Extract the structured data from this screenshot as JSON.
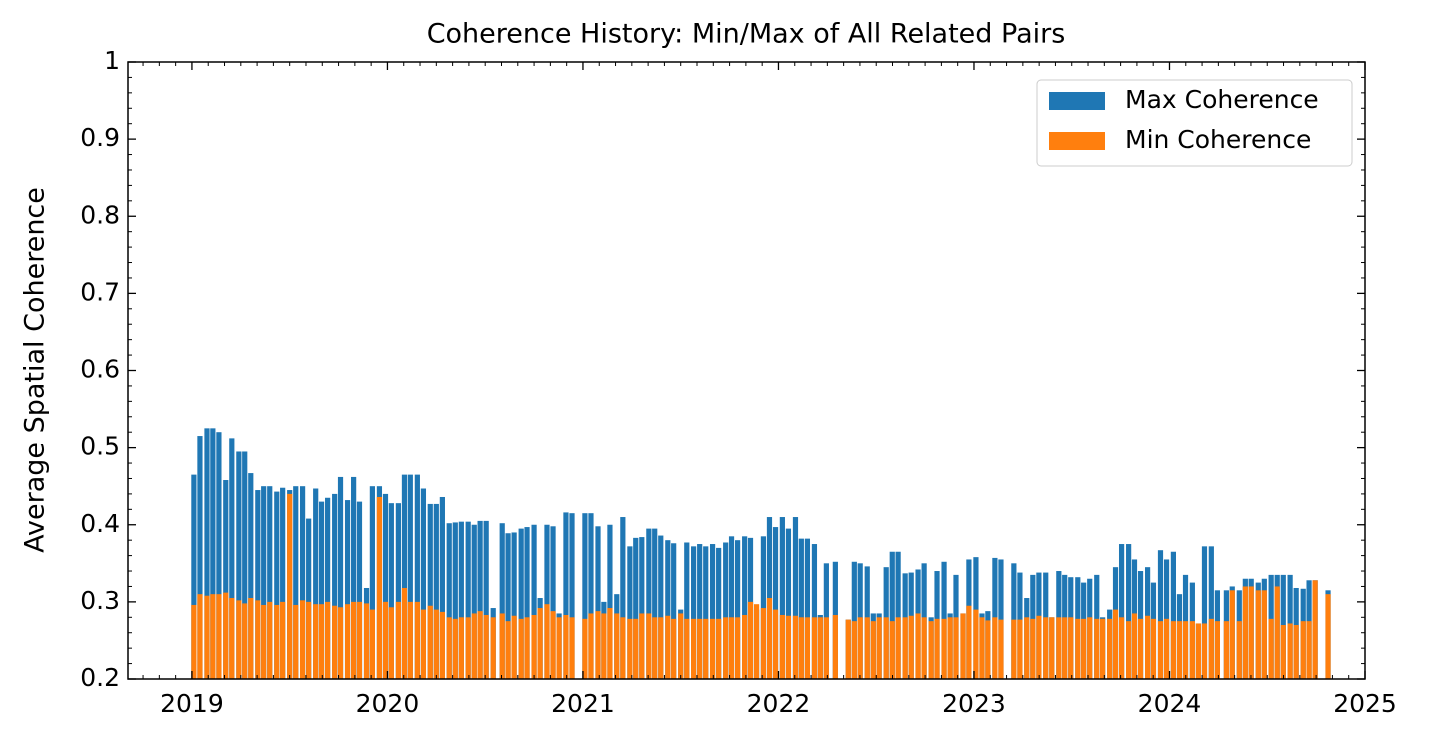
{
  "chart_data": {
    "type": "bar",
    "title": "Coherence History: Min/Max of All Related Pairs",
    "y_label": "Average Spatial Coherence",
    "xlim": [
      2018.673,
      2025
    ],
    "xticks": [
      2019,
      2020,
      2021,
      2022,
      2023,
      2024,
      2025
    ],
    "ylim": [
      0.2,
      1.0
    ],
    "yticks": [
      0.2,
      0.3,
      0.4,
      0.5,
      0.6,
      0.7,
      0.8,
      0.9,
      1.0
    ],
    "legend": "upper right",
    "x": [
      2019.01,
      2019.041,
      2019.077,
      2019.107,
      2019.138,
      2019.173,
      2019.204,
      2019.24,
      2019.27,
      2019.301,
      2019.337,
      2019.367,
      2019.398,
      2019.434,
      2019.464,
      2019.5,
      2019.531,
      2019.566,
      2019.597,
      2019.633,
      2019.663,
      2019.694,
      2019.73,
      2019.76,
      2019.796,
      2019.827,
      2019.857,
      2019.893,
      2019.923,
      2019.959,
      2019.99,
      2020.02,
      2020.056,
      2020.087,
      2020.117,
      2020.153,
      2020.184,
      2020.219,
      2020.25,
      2020.281,
      2020.316,
      2020.347,
      2020.378,
      2020.413,
      2020.444,
      2020.474,
      2020.505,
      2020.541,
      2020.587,
      2020.617,
      2020.648,
      2020.684,
      2020.714,
      2020.75,
      2020.781,
      2020.816,
      2020.847,
      2020.878,
      2020.913,
      2020.944,
      2021.01,
      2021.041,
      2021.077,
      2021.107,
      2021.138,
      2021.173,
      2021.204,
      2021.24,
      2021.27,
      2021.301,
      2021.337,
      2021.367,
      2021.398,
      2021.434,
      2021.464,
      2021.5,
      2021.531,
      2021.566,
      2021.597,
      2021.628,
      2021.663,
      2021.694,
      2021.73,
      2021.76,
      2021.791,
      2021.827,
      2021.857,
      2021.888,
      2021.923,
      2021.954,
      2021.985,
      2022.02,
      2022.051,
      2022.087,
      2022.117,
      2022.148,
      2022.184,
      2022.214,
      2022.245,
      2022.291,
      2022.357,
      2022.388,
      2022.418,
      2022.454,
      2022.485,
      2022.515,
      2022.551,
      2022.582,
      2022.612,
      2022.648,
      2022.679,
      2022.714,
      2022.745,
      2022.781,
      2022.811,
      2022.847,
      2022.878,
      2022.908,
      2022.944,
      2022.974,
      2023.01,
      2023.041,
      2023.071,
      2023.107,
      2023.138,
      2023.204,
      2023.235,
      2023.27,
      2023.301,
      2023.332,
      2023.367,
      2023.398,
      2023.434,
      2023.464,
      2023.495,
      2023.531,
      2023.561,
      2023.592,
      2023.628,
      2023.658,
      2023.694,
      2023.724,
      2023.755,
      2023.791,
      2023.821,
      2023.852,
      2023.888,
      2023.918,
      2023.954,
      2023.985,
      2024.02,
      2024.051,
      2024.082,
      2024.117,
      2024.148,
      2024.179,
      2024.214,
      2024.245,
      2024.291,
      2024.321,
      2024.357,
      2024.388,
      2024.418,
      2024.454,
      2024.485,
      2024.52,
      2024.551,
      2024.582,
      2024.617,
      2024.648,
      2024.684,
      2024.714,
      2024.745,
      2024.811
    ],
    "series": [
      {
        "name": "Max Coherence",
        "color": "#1f77b4",
        "values": [
          0.465,
          0.515,
          0.525,
          0.525,
          0.52,
          0.458,
          0.512,
          0.495,
          0.495,
          0.467,
          0.445,
          0.45,
          0.45,
          0.443,
          0.448,
          0.445,
          0.45,
          0.45,
          0.408,
          0.447,
          0.43,
          0.435,
          0.44,
          0.462,
          0.432,
          0.462,
          0.43,
          0.318,
          0.45,
          0.45,
          0.44,
          0.428,
          0.428,
          0.465,
          0.465,
          0.465,
          0.447,
          0.427,
          0.427,
          0.436,
          0.402,
          0.403,
          0.404,
          0.404,
          0.4,
          0.405,
          0.405,
          0.292,
          0.402,
          0.389,
          0.39,
          0.395,
          0.397,
          0.4,
          0.305,
          0.4,
          0.398,
          0.285,
          0.416,
          0.415,
          0.415,
          0.415,
          0.398,
          0.3,
          0.4,
          0.31,
          0.41,
          0.372,
          0.383,
          0.384,
          0.395,
          0.395,
          0.386,
          0.38,
          0.376,
          0.29,
          0.377,
          0.372,
          0.375,
          0.372,
          0.375,
          0.37,
          0.377,
          0.385,
          0.38,
          0.385,
          0.383,
          0.29,
          0.385,
          0.41,
          0.397,
          0.41,
          0.395,
          0.41,
          0.382,
          0.382,
          0.375,
          0.283,
          0.35,
          0.352,
          0.277,
          0.352,
          0.35,
          0.346,
          0.285,
          0.285,
          0.345,
          0.365,
          0.365,
          0.337,
          0.338,
          0.342,
          0.35,
          0.28,
          0.34,
          0.352,
          0.285,
          0.335,
          0.285,
          0.355,
          0.358,
          0.285,
          0.288,
          0.357,
          0.355,
          0.35,
          0.338,
          0.305,
          0.335,
          0.338,
          0.338,
          0.28,
          0.34,
          0.335,
          0.332,
          0.332,
          0.325,
          0.33,
          0.335,
          0.28,
          0.29,
          0.345,
          0.375,
          0.375,
          0.355,
          0.34,
          0.345,
          0.325,
          0.367,
          0.355,
          0.365,
          0.31,
          0.335,
          0.325,
          0.272,
          0.372,
          0.372,
          0.315,
          0.315,
          0.32,
          0.315,
          0.33,
          0.33,
          0.325,
          0.33,
          0.335,
          0.335,
          0.335,
          0.335,
          0.318,
          0.317,
          0.328,
          0.328,
          0.315
        ]
      },
      {
        "name": "Min Coherence",
        "color": "#ff7f0e",
        "values": [
          0.296,
          0.31,
          0.308,
          0.31,
          0.31,
          0.312,
          0.305,
          0.302,
          0.298,
          0.305,
          0.302,
          0.296,
          0.3,
          0.296,
          0.3,
          0.44,
          0.296,
          0.302,
          0.3,
          0.297,
          0.297,
          0.3,
          0.295,
          0.293,
          0.297,
          0.3,
          0.3,
          0.298,
          0.29,
          0.436,
          0.3,
          0.293,
          0.3,
          0.318,
          0.3,
          0.3,
          0.29,
          0.295,
          0.29,
          0.287,
          0.28,
          0.278,
          0.28,
          0.28,
          0.285,
          0.288,
          0.283,
          0.28,
          0.285,
          0.275,
          0.282,
          0.278,
          0.28,
          0.283,
          0.292,
          0.297,
          0.288,
          0.28,
          0.283,
          0.28,
          0.278,
          0.285,
          0.288,
          0.285,
          0.292,
          0.285,
          0.28,
          0.278,
          0.278,
          0.285,
          0.285,
          0.28,
          0.28,
          0.282,
          0.278,
          0.285,
          0.278,
          0.278,
          0.278,
          0.278,
          0.278,
          0.278,
          0.28,
          0.28,
          0.28,
          0.283,
          0.3,
          0.297,
          0.292,
          0.305,
          0.29,
          0.283,
          0.282,
          0.282,
          0.28,
          0.28,
          0.28,
          0.28,
          0.28,
          0.283,
          0.277,
          0.275,
          0.28,
          0.28,
          0.275,
          0.28,
          0.28,
          0.275,
          0.28,
          0.28,
          0.282,
          0.285,
          0.28,
          0.275,
          0.278,
          0.278,
          0.28,
          0.28,
          0.285,
          0.295,
          0.29,
          0.28,
          0.276,
          0.28,
          0.277,
          0.277,
          0.277,
          0.28,
          0.278,
          0.282,
          0.28,
          0.28,
          0.28,
          0.28,
          0.28,
          0.278,
          0.278,
          0.28,
          0.278,
          0.278,
          0.278,
          0.29,
          0.28,
          0.275,
          0.285,
          0.278,
          0.282,
          0.278,
          0.275,
          0.278,
          0.275,
          0.275,
          0.275,
          0.275,
          0.272,
          0.272,
          0.278,
          0.275,
          0.275,
          0.315,
          0.275,
          0.32,
          0.32,
          0.315,
          0.315,
          0.278,
          0.32,
          0.27,
          0.272,
          0.27,
          0.275,
          0.275,
          0.328,
          0.31
        ]
      }
    ]
  }
}
